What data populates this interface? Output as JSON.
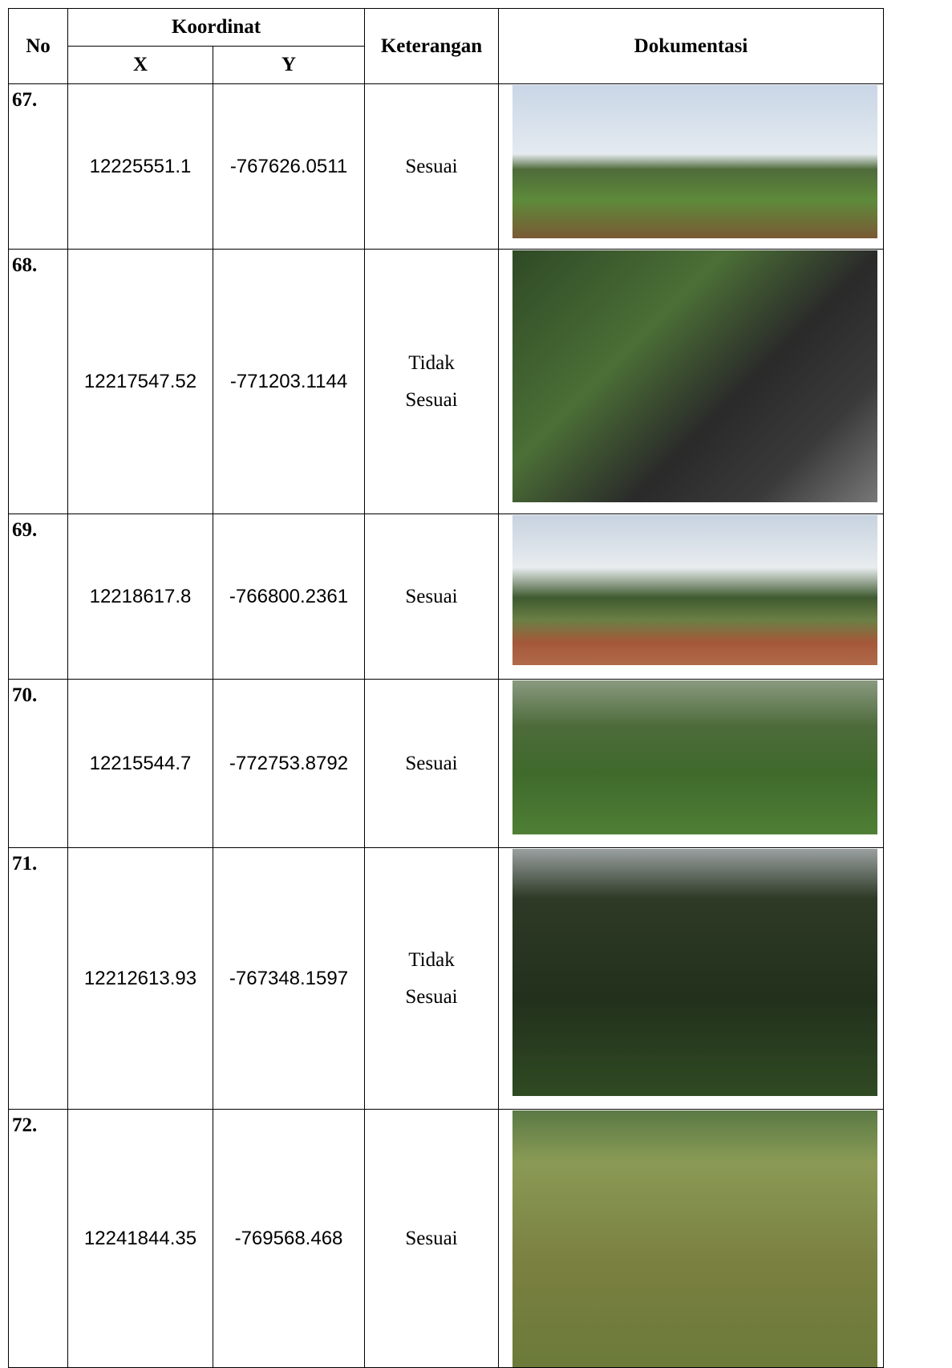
{
  "table": {
    "headers": {
      "no": "No",
      "koordinat": "Koordinat",
      "x": "X",
      "y": "Y",
      "keterangan": "Keterangan",
      "dokumentasi": "Dokumentasi"
    },
    "rows": [
      [
        "67.",
        "12225551.1",
        "-767626.0511",
        "Sesuai"
      ],
      [
        "68.",
        "12217547.52",
        "-771203.1144",
        "Tidak Sesuai"
      ],
      [
        "69.",
        "12218617.8",
        "-766800.2361",
        "Sesuai"
      ],
      [
        "70.",
        "12215544.7",
        "-772753.8792",
        "Sesuai"
      ],
      [
        "71.",
        "12212613.93",
        "-767348.1597",
        "Tidak Sesuai"
      ],
      [
        "72.",
        "12241844.35",
        "-769568.468",
        "Sesuai"
      ]
    ]
  }
}
